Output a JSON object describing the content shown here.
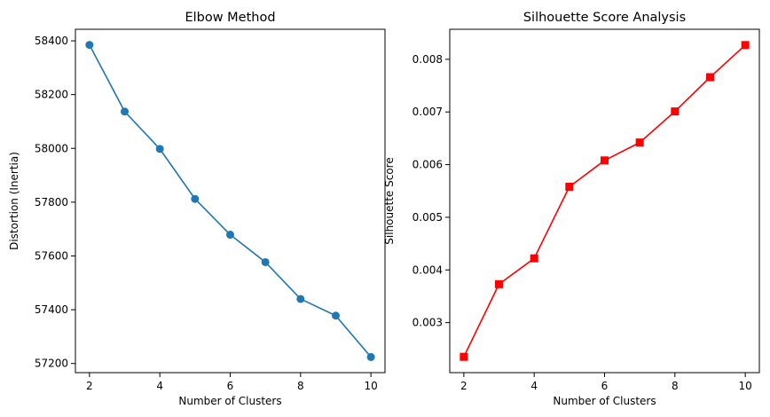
{
  "chart_data": [
    {
      "type": "line",
      "title": "Elbow Method",
      "xlabel": "Number of Clusters",
      "ylabel": "Distortion (Inertia)",
      "x": [
        2,
        3,
        4,
        5,
        6,
        7,
        8,
        9,
        10
      ],
      "series": [
        {
          "values": [
            58385,
            58137,
            57998,
            57812,
            57679,
            57577,
            57440,
            57378,
            57224
          ],
          "color": "#1f77b4",
          "marker": "circle"
        }
      ],
      "xticks": [
        2,
        4,
        6,
        8,
        10
      ],
      "xtick_labels": [
        "2",
        "4",
        "6",
        "8",
        "10"
      ],
      "yticks": [
        57200,
        57400,
        57600,
        57800,
        58000,
        58200,
        58400
      ],
      "ytick_labels": [
        "57200",
        "57400",
        "57600",
        "57800",
        "58000",
        "58200",
        "58400"
      ],
      "xlim": [
        1.6,
        10.4
      ],
      "ylim": [
        57166,
        58443
      ],
      "grid": false
    },
    {
      "type": "line",
      "title": "Silhouette Score Analysis",
      "xlabel": "Number of Clusters",
      "ylabel": "Silhouette Score",
      "x": [
        2,
        3,
        4,
        5,
        6,
        7,
        8,
        9,
        10
      ],
      "series": [
        {
          "values": [
            0.00235,
            0.00373,
            0.00422,
            0.00558,
            0.00608,
            0.00642,
            0.00701,
            0.00766,
            0.00827
          ],
          "color": "#ff0000",
          "marker": "square"
        }
      ],
      "xticks": [
        2,
        4,
        6,
        8,
        10
      ],
      "xtick_labels": [
        "2",
        "4",
        "6",
        "8",
        "10"
      ],
      "yticks": [
        0.003,
        0.004,
        0.005,
        0.006,
        0.007,
        0.008
      ],
      "ytick_labels": [
        "0.003",
        "0.004",
        "0.005",
        "0.006",
        "0.007",
        "0.008"
      ],
      "xlim": [
        1.6,
        10.4
      ],
      "ylim": [
        0.00205,
        0.00857
      ],
      "grid": false
    }
  ]
}
